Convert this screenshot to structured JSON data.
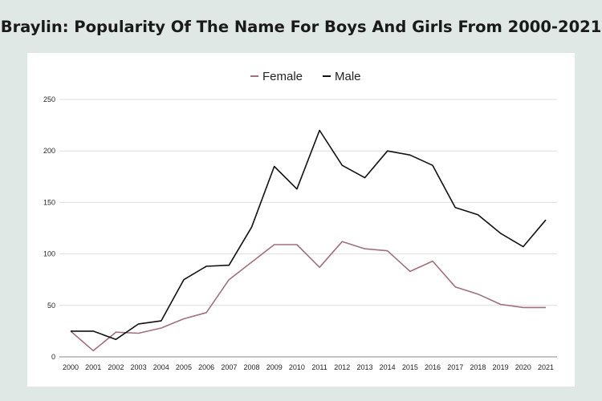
{
  "title": "Braylin: Popularity Of The Name For Boys And Girls From 2000-2021",
  "chart_data": {
    "type": "line",
    "title": "Braylin: Popularity Of The Name For Boys And Girls From 2000-2021",
    "xlabel": "",
    "ylabel": "",
    "categories": [
      "2000",
      "2001",
      "2002",
      "2003",
      "2004",
      "2005",
      "2006",
      "2007",
      "2008",
      "2009",
      "2010",
      "2011",
      "2012",
      "2013",
      "2014",
      "2015",
      "2016",
      "2017",
      "2018",
      "2019",
      "2020",
      "2021"
    ],
    "y_ticks": [
      0,
      50,
      100,
      150,
      200,
      250
    ],
    "ylim": [
      0,
      250
    ],
    "grid": true,
    "legend_position": "top-center",
    "series": [
      {
        "name": "Female",
        "color": "#a2707c",
        "values": [
          25,
          6,
          24,
          23,
          28,
          37,
          43,
          75,
          92,
          109,
          109,
          87,
          112,
          105,
          103,
          83,
          93,
          68,
          61,
          51,
          48,
          48
        ]
      },
      {
        "name": "Male",
        "color": "#111111",
        "values": [
          25,
          25,
          17,
          32,
          35,
          75,
          88,
          89,
          126,
          185,
          163,
          220,
          186,
          174,
          200,
          196,
          186,
          145,
          138,
          120,
          107,
          133
        ]
      }
    ]
  }
}
